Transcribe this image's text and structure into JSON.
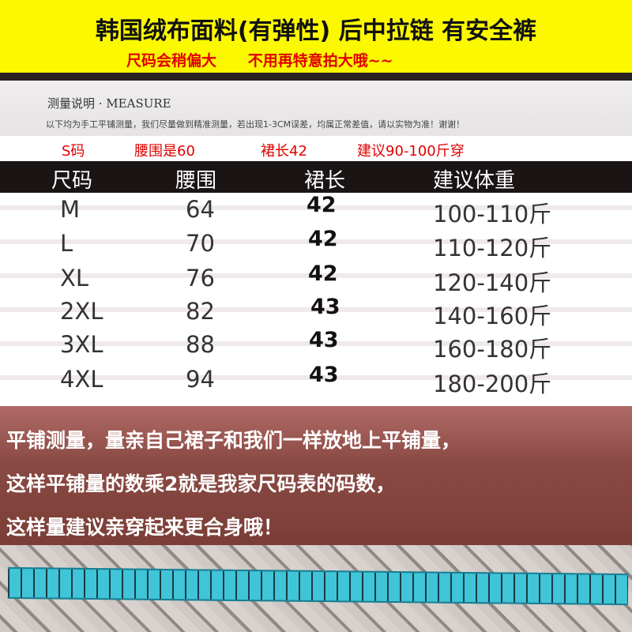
{
  "banner": {
    "line1": "韩国绒布面料(有弹性)  后中拉链  有安全裤",
    "line2": "尺码会稍偏大      不用再特意拍大哦~~"
  },
  "measure": {
    "title": "测量说明 · MEASURE",
    "note": "以下均为手工平铺测量，我们尽量做到精准测量，若出现1-3CM误差，均属正常差值，请以实物为准！谢谢！"
  },
  "example": [
    "S码",
    "腰围是60",
    "裙长42",
    "建议90-100斤穿"
  ],
  "table": {
    "headers": [
      "尺码",
      "腰围",
      "裙长",
      "建议体重"
    ],
    "rows": [
      [
        "M",
        "64",
        "42",
        "100-110斤"
      ],
      [
        "L",
        "70",
        "42",
        "110-120斤"
      ],
      [
        "XL",
        "76",
        "42",
        "120-140斤"
      ],
      [
        "2XL",
        "82",
        "43",
        "140-160斤"
      ],
      [
        "3XL",
        "88",
        "43",
        "160-180斤"
      ],
      [
        "4XL",
        "94",
        "43",
        "180-200斤"
      ]
    ]
  },
  "footer": [
    "平铺测量，量亲自己裙子和我们一样放地上平铺量，",
    "这样平铺量的数乘2就是我家尺码表的码数，",
    "这样量建议亲穿起来更合身哦！"
  ]
}
